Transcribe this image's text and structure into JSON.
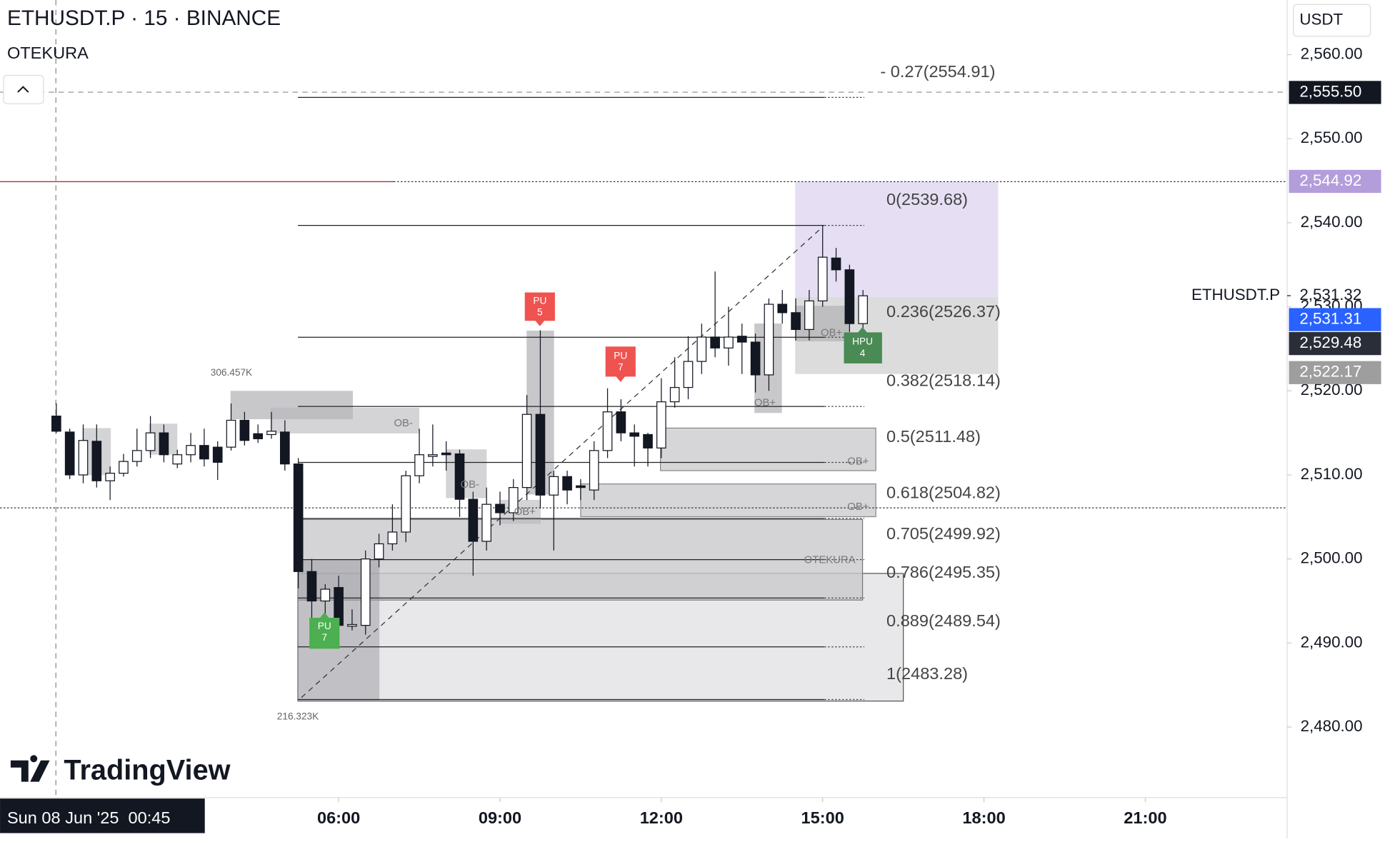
{
  "chart_data": {
    "type": "candlestick",
    "title": "ETHUSDT.P · 15 · BINANCE",
    "indicator": "OTEKURA",
    "currency": "USDT",
    "branding": "TradingView",
    "crosshair_label": "Sun 08 Jun '25  00:45",
    "x": [
      "00:45",
      "01:00",
      "01:15",
      "01:30",
      "01:45",
      "02:00",
      "02:15",
      "02:30",
      "02:45",
      "03:00",
      "03:15",
      "03:30",
      "03:45",
      "04:00",
      "04:15",
      "04:30",
      "04:45",
      "05:00",
      "05:15",
      "05:30",
      "05:45",
      "06:00",
      "06:15",
      "06:30",
      "06:45",
      "07:00",
      "07:15",
      "07:30",
      "07:45",
      "08:00",
      "08:15",
      "08:30",
      "08:45",
      "09:00",
      "09:15",
      "09:30",
      "09:45",
      "10:00",
      "10:15",
      "10:30",
      "10:45",
      "11:00",
      "11:15",
      "11:30",
      "11:45",
      "12:00",
      "12:15",
      "12:30",
      "12:45",
      "13:00",
      "13:15",
      "13:30",
      "13:45",
      "14:00",
      "14:15",
      "14:30",
      "14:45",
      "15:00",
      "15:15",
      "15:30",
      "15:45"
    ],
    "series": [
      {
        "name": "ETHUSDT.P",
        "up_color": "#ffffff",
        "down_color": "#131722",
        "open": [
          2517,
          2515.1,
          2510,
          2514,
          2509.3,
          2510.2,
          2511.6,
          2512.9,
          2515,
          2511.3,
          2512.4,
          2513.5,
          2513.3,
          2513.3,
          2516.5,
          2514.9,
          2514.8,
          2515.1,
          2511.3,
          2498.5,
          2495,
          2496.6,
          2492,
          2492.1,
          2500,
          2501.8,
          2503.2,
          2509.9,
          2512.2,
          2512.6,
          2512.5,
          2507.1,
          2502.1,
          2506.5,
          2505.5,
          2508.5,
          2517.2,
          2507.6,
          2509.8,
          2508.7,
          2508.2,
          2512.9,
          2517.5,
          2515,
          2514.8,
          2513.2,
          2518.7,
          2520.4,
          2523.5,
          2526.4,
          2525.1,
          2526.5,
          2525.8,
          2521.9,
          2530.3,
          2529.3,
          2527.3,
          2530.7,
          2535.8,
          2534.4,
          2528
        ],
        "high": [
          2518.5,
          2515.5,
          2516,
          2516,
          2511,
          2512.5,
          2515.5,
          2517,
          2516,
          2513,
          2515,
          2515.5,
          2514,
          2518.5,
          2517.5,
          2516,
          2517.5,
          2516.5,
          2512,
          2500,
          2497,
          2498,
          2494,
          2501,
          2503,
          2506.5,
          2510.5,
          2515.5,
          2516,
          2514,
          2513,
          2508,
          2508.5,
          2508,
          2509.5,
          2519.5,
          2527.2,
          2510.5,
          2510.5,
          2509.5,
          2514,
          2520.3,
          2519,
          2516,
          2515,
          2521.5,
          2524,
          2526.5,
          2528,
          2534.2,
          2530,
          2528,
          2526.8,
          2531,
          2532,
          2531,
          2532,
          2539.68,
          2537,
          2535,
          2532
        ],
        "low": [
          2515,
          2509.5,
          2509,
          2508.5,
          2507,
          2509.8,
          2511,
          2512,
          2511.5,
          2510.8,
          2511.5,
          2511,
          2509.4,
          2512.9,
          2513.5,
          2513.8,
          2514.3,
          2510.5,
          2496.5,
          2493,
          2492,
          2490.5,
          2491.5,
          2491,
          2499,
          2501,
          2502,
          2509,
          2511,
          2510.5,
          2505,
          2498,
          2501,
          2504,
          2504.5,
          2507,
          2506,
          2501,
          2506.5,
          2507,
          2507,
          2512,
          2514,
          2511,
          2511,
          2512,
          2518,
          2519,
          2522,
          2524,
          2523,
          2522,
          2519.8,
          2520,
          2528,
          2526,
          2526,
          2530,
          2533,
          2527,
          2527.5
        ],
        "close": [
          2515.2,
          2510,
          2514.1,
          2509.3,
          2510.2,
          2511.6,
          2512.9,
          2515,
          2512.4,
          2512.4,
          2513.5,
          2511.9,
          2511.5,
          2516.5,
          2514.1,
          2514.3,
          2515.2,
          2511.3,
          2498.5,
          2495,
          2496.4,
          2492.1,
          2492.2,
          2500,
          2501.8,
          2503.2,
          2509.9,
          2512.4,
          2512.4,
          2512.4,
          2507.1,
          2502.1,
          2506.5,
          2505.5,
          2508.5,
          2517.2,
          2507.6,
          2509.8,
          2508.2,
          2508.5,
          2512.9,
          2517.5,
          2515,
          2514.6,
          2513.2,
          2518.7,
          2520.4,
          2523.5,
          2526.4,
          2525.1,
          2526.4,
          2525.8,
          2521.9,
          2530.3,
          2529.3,
          2527.3,
          2530.7,
          2535.9,
          2534.4,
          2528,
          2531.31
        ]
      }
    ],
    "ylim": [
      2471.6,
      2566.5
    ],
    "yticks": [
      {
        "value": 2480,
        "label": "2,480.00"
      },
      {
        "value": 2490,
        "label": "2,490.00"
      },
      {
        "value": 2500,
        "label": "2,500.00"
      },
      {
        "value": 2510,
        "label": "2,510.00"
      },
      {
        "value": 2520,
        "label": "2,520.00"
      },
      {
        "value": 2530,
        "label": "2,530.00"
      },
      {
        "value": 2540,
        "label": "2,540.00"
      },
      {
        "value": 2550,
        "label": "2,550.00"
      },
      {
        "value": 2560,
        "label": "2,560.00"
      }
    ],
    "xticks": [
      "06:00",
      "09:00",
      "12:00",
      "15:00",
      "18:00",
      "21:00"
    ],
    "fib_levels": [
      {
        "value": 2554.91,
        "label": "- 0.27(2554.91)"
      },
      {
        "value": 2539.68,
        "label": "0(2539.68)"
      },
      {
        "value": 2526.37,
        "label": "0.236(2526.37)"
      },
      {
        "value": 2518.14,
        "label": "0.382(2518.14)"
      },
      {
        "value": 2511.48,
        "label": "0.5(2511.48)"
      },
      {
        "value": 2504.82,
        "label": "0.618(2504.82)"
      },
      {
        "value": 2499.92,
        "label": "0.705(2499.92)"
      },
      {
        "value": 2495.35,
        "label": "0.786(2495.35)"
      },
      {
        "value": 2489.54,
        "label": "0.889(2489.54)"
      },
      {
        "value": 2483.28,
        "label": "1(2483.28)"
      }
    ],
    "price_tags": [
      {
        "value": 2555.5,
        "label": "2,555.50",
        "color": "#131722"
      },
      {
        "value": 2544.92,
        "label": "2,544.92",
        "color": "#b39ddb"
      },
      {
        "value": 2531.32,
        "label": "2,531.32",
        "name": "ETHUSDT.P"
      },
      {
        "value": 2531.31,
        "label": "2,531.31",
        "color": "#2962ff"
      },
      {
        "value": 2529.48,
        "label": "2,529.48",
        "color": "#2a2e39"
      },
      {
        "value": 2522.17,
        "label": "2,522.17",
        "color": "#9e9e9e"
      }
    ],
    "annotations": {
      "vol_high": "306.457K",
      "vol_low": "216.323K",
      "ob_minus": "OB-",
      "ob_plus": "OB+",
      "box_label": "OTEKURA",
      "markers": [
        {
          "text": "PU",
          "count": 5
        },
        {
          "text": "PU",
          "count": 7
        },
        {
          "text": "PU",
          "count": 7
        },
        {
          "text": "HPU",
          "count": 4
        }
      ]
    }
  }
}
